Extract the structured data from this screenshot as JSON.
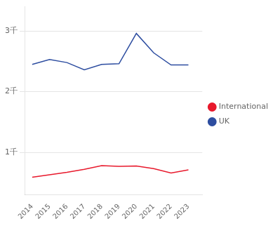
{
  "chart_data": {
    "type": "line",
    "x": [
      2014,
      2015,
      2016,
      2017,
      2018,
      2019,
      2020,
      2021,
      2022,
      2023
    ],
    "series": [
      {
        "name": "UK",
        "color": "#2d4da0",
        "values": [
          2450,
          2530,
          2480,
          2360,
          2450,
          2460,
          2960,
          2640,
          2440,
          2440
        ]
      },
      {
        "name": "International",
        "color": "#e8192c",
        "values": [
          590,
          630,
          670,
          720,
          780,
          770,
          775,
          730,
          660,
          710
        ]
      }
    ],
    "xlim": [
      2013.6,
      2023.8
    ],
    "xticks": [
      2014,
      2015,
      2016,
      2017,
      2018,
      2019,
      2020,
      2021,
      2022,
      2023
    ],
    "ylim": [
      300,
      3400
    ],
    "yticks": [
      {
        "value": 3000,
        "label": "3千"
      },
      {
        "value": 2000,
        "label": "2千"
      },
      {
        "value": 1000,
        "label": "1千"
      }
    ],
    "grid": true,
    "legend": "right"
  }
}
